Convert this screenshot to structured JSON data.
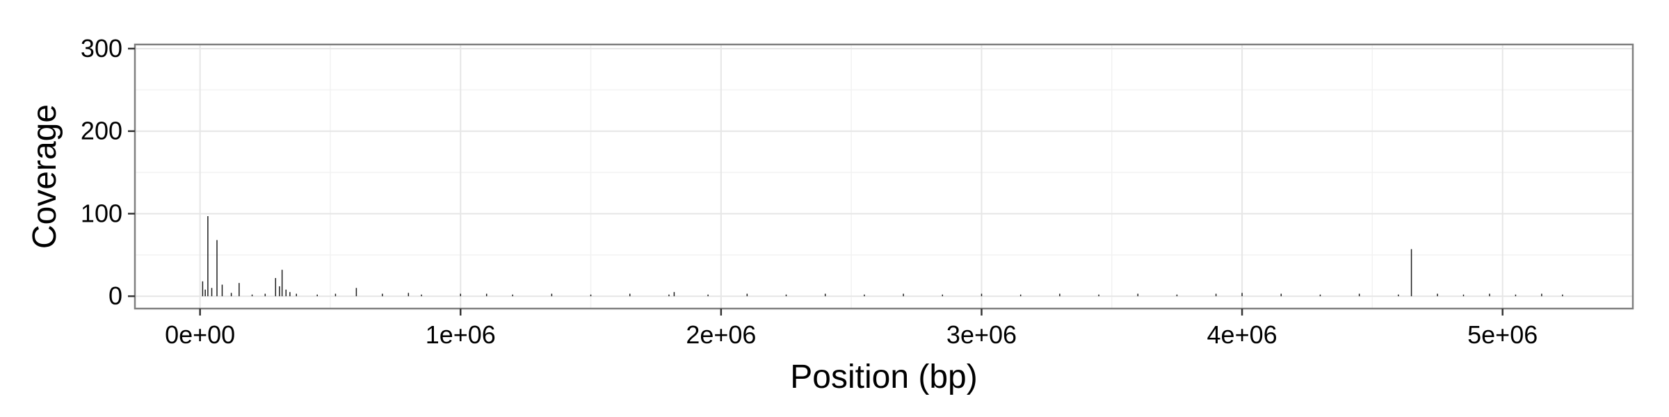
{
  "chart_data": {
    "type": "bar",
    "title": "",
    "xlabel": "Position (bp)",
    "ylabel": "Coverage",
    "xlim": [
      -250000,
      5500000
    ],
    "ylim": [
      -15,
      305
    ],
    "x_ticks": [
      0,
      1000000,
      2000000,
      3000000,
      4000000,
      5000000
    ],
    "x_tick_labels": [
      "0e+00",
      "1e+06",
      "2e+06",
      "3e+06",
      "4e+06",
      "5e+06"
    ],
    "y_ticks": [
      0,
      100,
      200,
      300
    ],
    "y_tick_labels": [
      "0",
      "100",
      "200",
      "300"
    ],
    "grid": true,
    "legend": "none",
    "series": [
      {
        "x": [
          10000,
          20000,
          30000,
          45000,
          65000,
          85000,
          120000,
          150000,
          200000,
          250000,
          290000,
          305000,
          315000,
          330000,
          345000,
          370000,
          450000,
          520000,
          600000,
          700000,
          800000,
          850000,
          1000000,
          1100000,
          1200000,
          1350000,
          1500000,
          1650000,
          1800000,
          1820000,
          1950000,
          2100000,
          2250000,
          2400000,
          2550000,
          2700000,
          2850000,
          3000000,
          3150000,
          3300000,
          3450000,
          3600000,
          3750000,
          3900000,
          4000000,
          4150000,
          4300000,
          4450000,
          4600000,
          4650000,
          4750000,
          4850000,
          4950000,
          5050000,
          5150000,
          5230000
        ],
        "values": [
          18,
          8,
          97,
          10,
          68,
          14,
          4,
          16,
          2,
          3,
          22,
          12,
          32,
          8,
          5,
          3,
          2,
          3,
          10,
          3,
          4,
          2,
          3,
          3,
          2,
          3,
          2,
          3,
          2,
          5,
          2,
          3,
          2,
          3,
          2,
          3,
          2,
          3,
          2,
          3,
          2,
          3,
          2,
          3,
          4,
          3,
          2,
          3,
          2,
          57,
          3,
          2,
          3,
          2,
          3,
          2
        ]
      }
    ]
  }
}
